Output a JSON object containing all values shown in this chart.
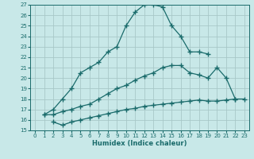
{
  "xlabel": "Humidex (Indice chaleur)",
  "background_color": "#c8e8e8",
  "grid_color": "#a8c8c8",
  "line_color": "#1a6b6b",
  "xlim": [
    -0.5,
    23.5
  ],
  "ylim": [
    15,
    27
  ],
  "xticks": [
    0,
    1,
    2,
    3,
    4,
    5,
    6,
    7,
    8,
    9,
    10,
    11,
    12,
    13,
    14,
    15,
    16,
    17,
    18,
    19,
    20,
    21,
    22,
    23
  ],
  "yticks": [
    15,
    16,
    17,
    18,
    19,
    20,
    21,
    22,
    23,
    24,
    25,
    26,
    27
  ],
  "curve1_x": [
    1,
    2,
    3,
    4,
    5,
    6,
    7,
    8,
    9,
    10,
    11,
    12,
    13,
    14,
    15,
    16,
    17,
    18,
    19
  ],
  "curve1_y": [
    16.5,
    17.0,
    18.0,
    19.0,
    20.5,
    21.0,
    21.5,
    22.5,
    23.0,
    25.0,
    26.3,
    27.0,
    27.0,
    26.8,
    25.0,
    24.0,
    22.5,
    22.5,
    22.3
  ],
  "curve2_x": [
    1,
    2,
    3,
    4,
    5,
    6,
    7,
    8,
    9,
    10,
    11,
    12,
    13,
    14,
    15,
    16,
    17,
    18,
    19,
    20,
    21,
    22
  ],
  "curve2_y": [
    16.5,
    16.5,
    16.8,
    17.0,
    17.3,
    17.5,
    18.0,
    18.5,
    19.0,
    19.3,
    19.8,
    20.2,
    20.5,
    21.0,
    21.2,
    21.2,
    20.5,
    20.3,
    20.0,
    21.0,
    20.0,
    18.0
  ],
  "curve3_x": [
    2,
    3,
    4,
    5,
    6,
    7,
    8,
    9,
    10,
    11,
    12,
    13,
    14,
    15,
    16,
    17,
    18,
    19,
    20,
    21,
    22,
    23
  ],
  "curve3_y": [
    15.8,
    15.5,
    15.8,
    16.0,
    16.2,
    16.4,
    16.6,
    16.8,
    17.0,
    17.1,
    17.3,
    17.4,
    17.5,
    17.6,
    17.7,
    17.8,
    17.9,
    17.8,
    17.8,
    17.9,
    18.0,
    18.0
  ]
}
